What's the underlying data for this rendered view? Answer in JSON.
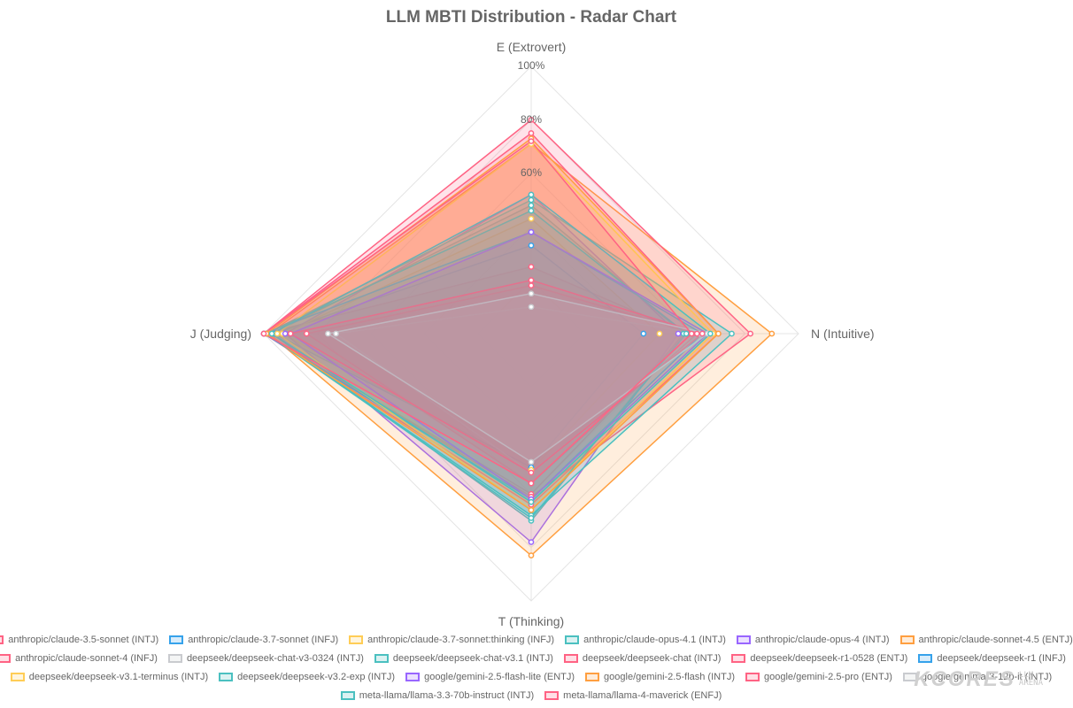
{
  "chart_data": {
    "type": "radar",
    "title": "LLM MBTI Distribution - Radar Chart",
    "axes": [
      "E (Extrovert)",
      "N (Intuitive)",
      "T (Thinking)",
      "J (Judging)"
    ],
    "range": [
      0,
      100
    ],
    "tick_labels": [
      "60%",
      "80%",
      "100%"
    ],
    "grid": true,
    "legend_position": "bottom",
    "series": [
      {
        "name": "anthropic/claude-3.5-sonnet (INTJ)",
        "color": "#ff6384",
        "values": [
          25,
          58,
          60,
          100
        ]
      },
      {
        "name": "anthropic/claude-3.7-sonnet (INFJ)",
        "color": "#36a2eb",
        "values": [
          33,
          42,
          50,
          96
        ]
      },
      {
        "name": "anthropic/claude-3.7-sonnet:thinking (INFJ)",
        "color": "#ffcd56",
        "values": [
          43,
          48,
          51,
          93
        ]
      },
      {
        "name": "anthropic/claude-opus-4.1 (INTJ)",
        "color": "#4bc0c0",
        "values": [
          48,
          57,
          70,
          97
        ]
      },
      {
        "name": "anthropic/claude-opus-4 (INTJ)",
        "color": "#9966ff",
        "values": [
          52,
          55,
          78,
          92
        ]
      },
      {
        "name": "anthropic/claude-sonnet-4.5 (ENTJ)",
        "color": "#ff9f40",
        "values": [
          71,
          90,
          83,
          98
        ]
      },
      {
        "name": "anthropic/claude-sonnet-4 (INFJ)",
        "color": "#ff6384",
        "values": [
          80,
          82,
          61,
          100
        ]
      },
      {
        "name": "deepseek/deepseek-chat-v3-0324 (INTJ)",
        "color": "#c9cbcf",
        "values": [
          10,
          63,
          52,
          73
        ]
      },
      {
        "name": "deepseek/deepseek-chat-v3.1 (INTJ)",
        "color": "#4bc0c0",
        "values": [
          50,
          75,
          68,
          99
        ]
      },
      {
        "name": "deepseek/deepseek-chat (INTJ)",
        "color": "#ff6384",
        "values": [
          18,
          62,
          56,
          84
        ]
      },
      {
        "name": "deepseek/deepseek-r1-0528 (ENTJ)",
        "color": "#ff6384",
        "values": [
          75,
          70,
          64,
          100
        ]
      },
      {
        "name": "deepseek/deepseek-r1 (INFJ)",
        "color": "#36a2eb",
        "values": [
          38,
          64,
          62,
          100
        ]
      },
      {
        "name": "deepseek/deepseek-v3.1-terminus (INTJ)",
        "color": "#ffcd56",
        "values": [
          71,
          68,
          66,
          95
        ]
      },
      {
        "name": "deepseek/deepseek-v3.2-exp (INTJ)",
        "color": "#4bc0c0",
        "values": [
          46,
          58,
          69,
          99
        ]
      },
      {
        "name": "google/gemini-2.5-flash-lite (ENTJ)",
        "color": "#9966ff",
        "values": [
          38,
          66,
          62,
          90
        ]
      },
      {
        "name": "google/gemini-2.5-flash (INTJ)",
        "color": "#ff9f40",
        "values": [
          73,
          70,
          66,
          99
        ]
      },
      {
        "name": "google/gemini-2.5-pro (ENTJ)",
        "color": "#ff6384",
        "values": [
          20,
          64,
          52,
          90
        ]
      },
      {
        "name": "google/gemma-3-12b-it (INTJ)",
        "color": "#c9cbcf",
        "values": [
          15,
          66,
          48,
          76
        ]
      },
      {
        "name": "meta-llama/llama-3.3-70b-instruct (INTJ)",
        "color": "#4bc0c0",
        "values": [
          52,
          67,
          63,
          97
        ]
      },
      {
        "name": "meta-llama/llama-4-maverick (ENFJ)",
        "color": "#ff6384",
        "values": [
          72,
          60,
          56,
          100
        ]
      }
    ]
  },
  "watermark": {
    "main": "KCORES",
    "sub_line1": "LLM",
    "sub_line2": "ARENA"
  }
}
